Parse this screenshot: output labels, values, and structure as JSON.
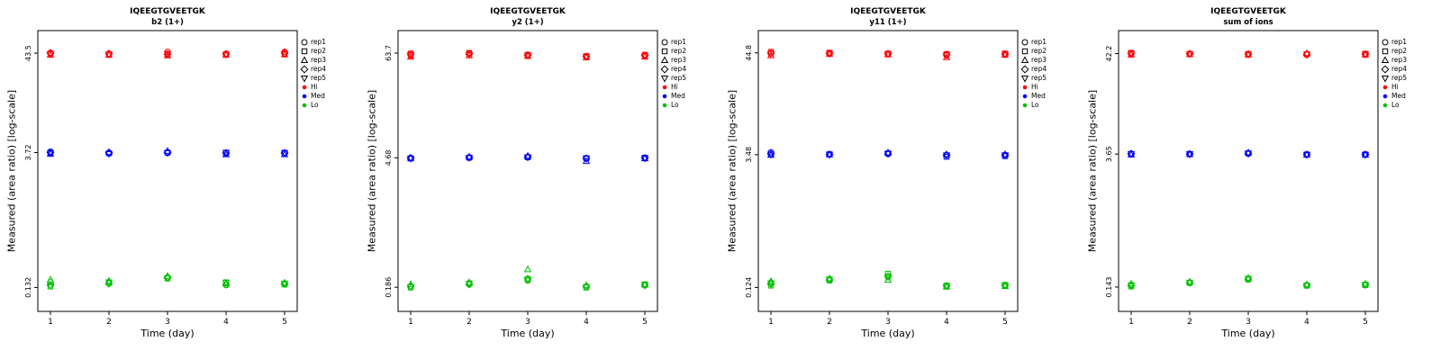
{
  "figure": {
    "background": "#ffffff"
  },
  "legend": {
    "reps": [
      {
        "label": "rep1",
        "symbol": "circle"
      },
      {
        "label": "rep2",
        "symbol": "square"
      },
      {
        "label": "rep3",
        "symbol": "triangle-up"
      },
      {
        "label": "rep4",
        "symbol": "diamond"
      },
      {
        "label": "rep5",
        "symbol": "triangle-down"
      }
    ],
    "levels": [
      {
        "label": "Hi",
        "color": "#ff0000"
      },
      {
        "label": "Med",
        "color": "#0000ff"
      },
      {
        "label": "Lo",
        "color": "#00c000"
      }
    ]
  },
  "chart_data": [
    {
      "type": "scatter",
      "title": "IQEEGTGVEETGK",
      "subtitle": "b2 (1+)",
      "xlabel": "Time (day)",
      "ylabel": "Measured (area ratio) [log-scale]",
      "x": [
        1,
        2,
        3,
        4,
        5
      ],
      "yticks": [
        43.5,
        3.72,
        0.132
      ],
      "ytick_labels": [
        "43.5",
        "3.72",
        "0.132"
      ],
      "ylim": [
        0.073,
        76
      ],
      "grid": false,
      "legend_position": "right",
      "series": [
        {
          "name": "Hi",
          "color": "#ff0000",
          "values": [
            [
              44.0,
              43.0,
              41.5,
              43.5,
              42.5
            ],
            [
              43.0,
              42.5,
              41.5,
              43.0,
              42.0
            ],
            [
              45.0,
              42.0,
              41.0,
              42.5,
              43.0
            ],
            [
              43.0,
              42.0,
              41.5,
              42.5,
              42.0
            ],
            [
              45.0,
              43.0,
              42.0,
              43.5,
              42.5
            ]
          ]
        },
        {
          "name": "Med",
          "color": "#0000ff",
          "values": [
            [
              3.8,
              3.7,
              3.6,
              3.72,
              3.65
            ],
            [
              3.7,
              3.65,
              3.75,
              3.7,
              3.6
            ],
            [
              3.75,
              3.7,
              3.85,
              3.72,
              3.68
            ],
            [
              3.7,
              3.65,
              3.55,
              3.68,
              3.72
            ],
            [
              3.65,
              3.7,
              3.55,
              3.68,
              3.66
            ]
          ]
        },
        {
          "name": "Lo",
          "color": "#00c000",
          "values": [
            [
              0.15,
              0.135,
              0.16,
              0.14,
              0.138
            ],
            [
              0.15,
              0.148,
              0.155,
              0.145,
              0.15
            ],
            [
              0.17,
              0.165,
              0.175,
              0.168,
              0.166
            ],
            [
              0.14,
              0.15,
              0.145,
              0.142,
              0.148
            ],
            [
              0.145,
              0.142,
              0.148,
              0.144,
              0.146
            ]
          ]
        }
      ]
    },
    {
      "type": "scatter",
      "title": "IQEEGTGVEETGK",
      "subtitle": "y2 (1+)",
      "xlabel": "Time (day)",
      "ylabel": "Measured (area ratio) [log-scale]",
      "x": [
        1,
        2,
        3,
        4,
        5
      ],
      "yticks": [
        63.7,
        4.68,
        0.186
      ],
      "ytick_labels": [
        "63.7",
        "4.68",
        "0.186"
      ],
      "ylim": [
        0.102,
        111.5
      ],
      "grid": false,
      "legend_position": "right",
      "series": [
        {
          "name": "Hi",
          "color": "#ff0000",
          "values": [
            [
              60.0,
              63.0,
              58.0,
              62.0,
              61.0
            ],
            [
              63.0,
              64.0,
              60.0,
              62.0,
              61.0
            ],
            [
              60.0,
              61.0,
              59.0,
              60.5,
              60.0
            ],
            [
              58.0,
              59.0,
              57.0,
              58.5,
              58.0
            ],
            [
              60.0,
              61.0,
              58.0,
              60.0,
              59.0
            ]
          ]
        },
        {
          "name": "Med",
          "color": "#0000ff",
          "values": [
            [
              4.7,
              4.6,
              4.68,
              4.65,
              4.6
            ],
            [
              4.75,
              4.7,
              4.8,
              4.72,
              4.7
            ],
            [
              4.8,
              4.75,
              4.9,
              4.78,
              4.76
            ],
            [
              4.6,
              4.65,
              4.3,
              4.6,
              4.62
            ],
            [
              4.65,
              4.7,
              4.6,
              4.66,
              4.64
            ]
          ]
        },
        {
          "name": "Lo",
          "color": "#00c000",
          "values": [
            [
              0.19,
              0.185,
              0.2,
              0.19,
              0.188
            ],
            [
              0.2,
              0.205,
              0.21,
              0.2,
              0.202
            ],
            [
              0.22,
              0.225,
              0.29,
              0.23,
              0.228
            ],
            [
              0.19,
              0.185,
              0.195,
              0.19,
              0.188
            ],
            [
              0.195,
              0.2,
              0.198,
              0.196,
              0.199
            ]
          ]
        }
      ]
    },
    {
      "type": "scatter",
      "title": "IQEEGTGVEETGK",
      "subtitle": "y11 (1+)",
      "xlabel": "Time (day)",
      "ylabel": "Measured (area ratio) [log-scale]",
      "x": [
        1,
        2,
        3,
        4,
        5
      ],
      "yticks": [
        44.8,
        3.48,
        0.124
      ],
      "ytick_labels": [
        "44.8",
        "3.48",
        "0.124"
      ],
      "ylim": [
        0.068,
        78.4
      ],
      "grid": false,
      "legend_position": "right",
      "series": [
        {
          "name": "Hi",
          "color": "#ff0000",
          "values": [
            [
              44.0,
              46.0,
              42.0,
              44.5,
              44.0
            ],
            [
              44.0,
              45.0,
              43.5,
              44.2,
              44.0
            ],
            [
              43.5,
              44.0,
              43.0,
              43.8,
              43.6
            ],
            [
              42.0,
              43.5,
              40.0,
              43.0,
              42.5
            ],
            [
              43.0,
              44.0,
              42.5,
              43.5,
              43.2
            ]
          ]
        },
        {
          "name": "Med",
          "color": "#0000ff",
          "values": [
            [
              3.7,
              3.5,
              3.45,
              3.55,
              3.5
            ],
            [
              3.5,
              3.52,
              3.48,
              3.5,
              3.49
            ],
            [
              3.55,
              3.6,
              3.65,
              3.58,
              3.56
            ],
            [
              3.45,
              3.3,
              3.5,
              3.45,
              3.44
            ],
            [
              3.45,
              3.35,
              3.5,
              3.46,
              3.44
            ]
          ]
        },
        {
          "name": "Lo",
          "color": "#00c000",
          "values": [
            [
              0.14,
              0.13,
              0.145,
              0.135,
              0.138
            ],
            [
              0.15,
              0.148,
              0.155,
              0.15,
              0.152
            ],
            [
              0.16,
              0.175,
              0.15,
              0.165,
              0.162
            ],
            [
              0.128,
              0.13,
              0.126,
              0.129,
              0.128
            ],
            [
              0.13,
              0.132,
              0.128,
              0.131,
              0.13
            ]
          ]
        }
      ]
    },
    {
      "type": "scatter",
      "title": "IQEEGTGVEETGK",
      "subtitle": "sum of ions",
      "xlabel": "Time (day)",
      "ylabel": "Measured (area ratio) [log-scale]",
      "x": [
        1,
        2,
        3,
        4,
        5
      ],
      "yticks": [
        42.2,
        3.65,
        0.143
      ],
      "ytick_labels": [
        "42.2",
        "3.65",
        "0.143"
      ],
      "ylim": [
        0.079,
        73.9
      ],
      "grid": false,
      "legend_position": "right",
      "series": [
        {
          "name": "Hi",
          "color": "#ff0000",
          "values": [
            [
              42.0,
              43.0,
              41.0,
              42.2,
              42.0
            ],
            [
              42.0,
              41.8,
              41.5,
              42.0,
              41.9
            ],
            [
              41.5,
              41.8,
              41.0,
              41.6,
              41.5
            ],
            [
              41.0,
              41.5,
              42.5,
              41.2,
              41.3
            ],
            [
              41.5,
              42.0,
              41.0,
              41.6,
              41.4
            ]
          ]
        },
        {
          "name": "Med",
          "color": "#0000ff",
          "values": [
            [
              3.7,
              3.65,
              3.6,
              3.68,
              3.66
            ],
            [
              3.65,
              3.66,
              3.62,
              3.65,
              3.64
            ],
            [
              3.7,
              3.72,
              3.78,
              3.71,
              3.7
            ],
            [
              3.6,
              3.62,
              3.58,
              3.61,
              3.6
            ],
            [
              3.6,
              3.62,
              3.58,
              3.61,
              3.6
            ]
          ]
        },
        {
          "name": "Lo",
          "color": "#00c000",
          "values": [
            [
              0.15,
              0.145,
              0.155,
              0.148,
              0.15
            ],
            [
              0.16,
              0.158,
              0.162,
              0.159,
              0.16
            ],
            [
              0.175,
              0.172,
              0.178,
              0.174,
              0.176
            ],
            [
              0.15,
              0.148,
              0.152,
              0.15,
              0.149
            ],
            [
              0.152,
              0.15,
              0.154,
              0.151,
              0.152
            ]
          ]
        }
      ]
    }
  ]
}
